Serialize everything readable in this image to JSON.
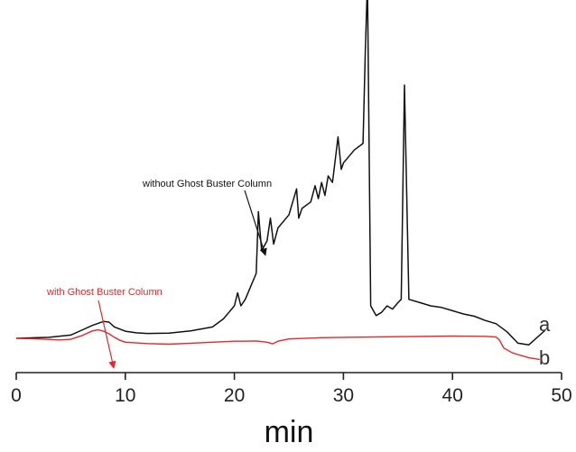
{
  "chart_data": {
    "type": "line",
    "xlabel": "min",
    "ylabel": "",
    "xlim": [
      0,
      50
    ],
    "ylim": [
      -8,
      100
    ],
    "xticks": [
      0,
      10,
      20,
      30,
      40,
      50
    ],
    "xtick_labels": [
      "0",
      "10",
      "20",
      "30",
      "40",
      "50"
    ],
    "grid": false,
    "colors": {
      "a": "#111111",
      "b": "#e8262a",
      "annotation_b": "#e8262a",
      "annotation_a": "#111111"
    },
    "series": [
      {
        "name": "a",
        "color": "#111111",
        "x": [
          0,
          3,
          5,
          6,
          7,
          8,
          8.5,
          9,
          10,
          11,
          12,
          14,
          16,
          18,
          19,
          19.5,
          20,
          20.3,
          20.6,
          21,
          21.5,
          22,
          22.2,
          22.5,
          23,
          23.3,
          23.6,
          24,
          25,
          25.7,
          25.9,
          26.2,
          27,
          27.4,
          27.7,
          28,
          28.3,
          28.6,
          29,
          29.5,
          29.8,
          30,
          31,
          31.8,
          32,
          32.2,
          32.5,
          33,
          33.5,
          34,
          34.5,
          35,
          35.3,
          35.6,
          36,
          37,
          38,
          39,
          40,
          41,
          42,
          43,
          44,
          45,
          46,
          47,
          48.5
        ],
        "y": [
          0,
          0.3,
          1,
          2.5,
          4,
          5.2,
          5,
          3.5,
          2.2,
          1.7,
          1.5,
          1.6,
          2.3,
          3.5,
          6,
          8,
          10,
          14,
          10,
          12,
          16,
          20,
          39,
          27,
          30,
          37,
          29,
          34,
          38,
          46,
          37,
          40,
          42,
          47,
          43,
          48,
          44,
          50,
          48,
          62,
          52,
          54,
          58,
          60,
          88,
          110,
          10,
          7,
          8,
          10,
          9,
          11,
          12,
          78,
          12,
          11,
          10,
          9.5,
          8.5,
          7.5,
          6.8,
          5.5,
          4.5,
          2,
          -1.5,
          -2,
          2.5
        ]
      },
      {
        "name": "b",
        "color": "#e8262a",
        "x": [
          0,
          2,
          4,
          5,
          6,
          7,
          7.5,
          8,
          8.5,
          9,
          9.5,
          10,
          12,
          14,
          16,
          18,
          20,
          21,
          22,
          23,
          23.5,
          24,
          25,
          28,
          30,
          35,
          40,
          43,
          44,
          44.3,
          44.7,
          45.5,
          46,
          47,
          48
        ],
        "y": [
          0,
          -0.2,
          -0.5,
          -0.3,
          0.8,
          2.3,
          2.6,
          2.2,
          1.4,
          0.3,
          -0.6,
          -1.2,
          -1.6,
          -1.8,
          -1.5,
          -1.2,
          -0.9,
          -0.9,
          -0.8,
          -1.2,
          -1.7,
          -0.9,
          -0.2,
          0.2,
          0.3,
          0.5,
          0.7,
          0.6,
          0.4,
          -0.5,
          -3,
          -4.5,
          -5,
          -6,
          -6.5
        ]
      }
    ],
    "annotations": [
      {
        "text": "without Ghost Buster Column",
        "series": "a",
        "arrow_to": [
          22.8,
          29
        ]
      },
      {
        "text": "with Ghost Buster Column",
        "series": "b",
        "arrow_to": [
          9,
          -8
        ]
      }
    ],
    "trace_labels": [
      "a",
      "b"
    ]
  }
}
